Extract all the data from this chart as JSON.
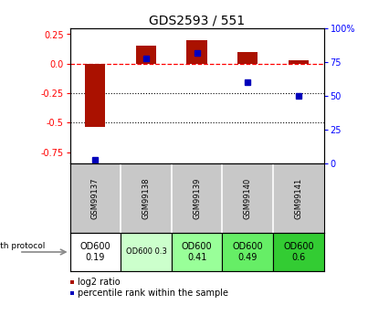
{
  "title": "GDS2593 / 551",
  "samples": [
    "GSM99137",
    "GSM99138",
    "GSM99139",
    "GSM99140",
    "GSM99141"
  ],
  "log2_ratio": [
    -0.54,
    0.15,
    0.2,
    0.1,
    0.03
  ],
  "percentile_rank": [
    3,
    78,
    82,
    60,
    50
  ],
  "protocol_labels": [
    "OD600\n0.19",
    "OD600 0.3",
    "OD600\n0.41",
    "OD600\n0.49",
    "OD600\n0.6"
  ],
  "protocol_colors": [
    "#ffffff",
    "#ccffcc",
    "#99ff99",
    "#66ee66",
    "#33cc33"
  ],
  "protocol_fontsize": [
    7,
    6,
    7,
    7,
    7
  ],
  "bar_color": "#aa1100",
  "dot_color": "#0000bb",
  "ylim_left": [
    -0.85,
    0.3
  ],
  "ylim_right": [
    0,
    100
  ],
  "right_ticks": [
    0,
    25,
    50,
    75,
    100
  ],
  "left_ticks": [
    -0.75,
    -0.5,
    -0.25,
    0.0,
    0.25
  ],
  "hline_y": 0.0,
  "dotted_lines": [
    -0.25,
    -0.5
  ],
  "title_fontsize": 10,
  "tick_fontsize": 7,
  "legend_red_label": "log2 ratio",
  "legend_blue_label": "percentile rank within the sample",
  "growth_protocol_label": "growth protocol",
  "right_tick_labels": [
    "0",
    "25",
    "50",
    "75",
    "100%"
  ]
}
